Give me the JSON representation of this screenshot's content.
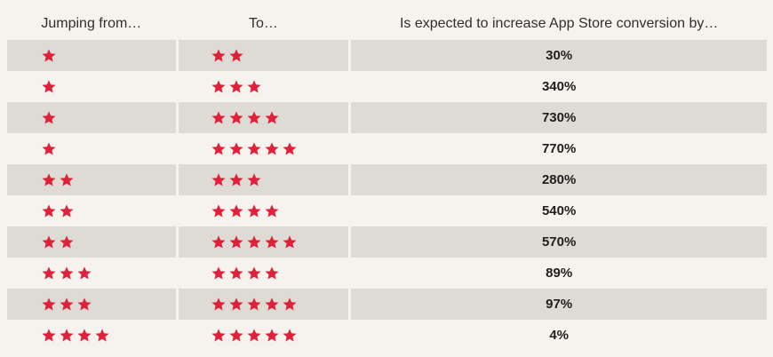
{
  "header": {
    "from": "Jumping from…",
    "to": "To…",
    "increase": "Is expected to increase App Store conversion by…"
  },
  "star_color": "#e0213a",
  "rows": [
    {
      "from_stars": 1,
      "to_stars": 2,
      "increase": "30%"
    },
    {
      "from_stars": 1,
      "to_stars": 3,
      "increase": "340%"
    },
    {
      "from_stars": 1,
      "to_stars": 4,
      "increase": "730%"
    },
    {
      "from_stars": 1,
      "to_stars": 5,
      "increase": "770%"
    },
    {
      "from_stars": 2,
      "to_stars": 3,
      "increase": "280%"
    },
    {
      "from_stars": 2,
      "to_stars": 4,
      "increase": "540%"
    },
    {
      "from_stars": 2,
      "to_stars": 5,
      "increase": "570%"
    },
    {
      "from_stars": 3,
      "to_stars": 4,
      "increase": "89%"
    },
    {
      "from_stars": 3,
      "to_stars": 5,
      "increase": "97%"
    },
    {
      "from_stars": 4,
      "to_stars": 5,
      "increase": "4%"
    }
  ]
}
